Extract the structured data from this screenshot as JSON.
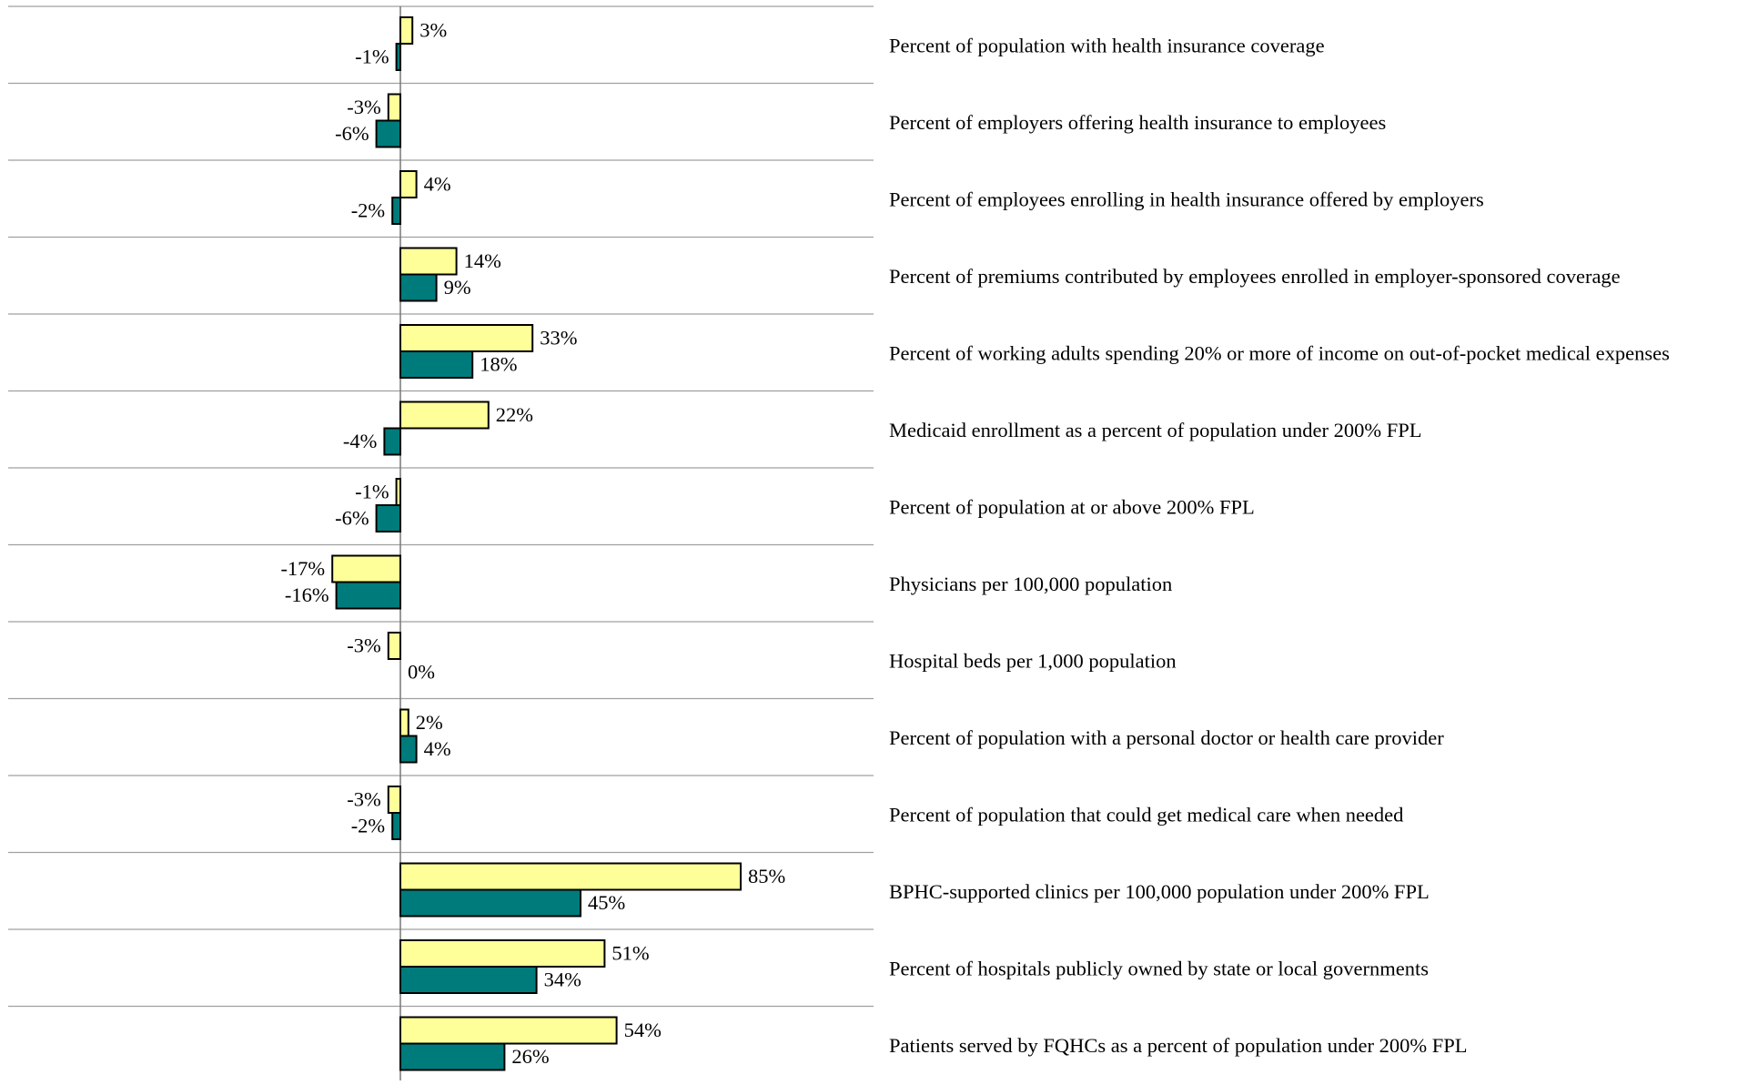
{
  "chart_data": {
    "type": "bar",
    "orientation": "horizontal",
    "xlim": [
      -30,
      100
    ],
    "grid": true,
    "legend": "none",
    "categories": [
      "Percent of population with health insurance coverage",
      "Percent of employers offering health insurance to employees",
      "Percent of employees enrolling in health insurance offered by employers",
      "Percent of premiums contributed by employees enrolled in employer-sponsored coverage",
      "Percent of working adults spending 20% or more of income on out-of-pocket medical expenses",
      "Medicaid enrollment as a percent of population under 200% FPL",
      "Percent of population at or above 200% FPL",
      "Physicians per 100,000 population",
      "Hospital beds per 1,000 population",
      "Percent of population with a personal doctor or health care provider",
      "Percent of population that could get medical care when needed",
      "BPHC-supported clinics per 100,000 population under 200% FPL",
      "Percent of hospitals publicly owned by state or local governments",
      "Patients served by FQHCs as a percent of population under 200% FPL"
    ],
    "series": [
      {
        "color": "#FFFF99",
        "values": [
          3,
          -3,
          4,
          14,
          33,
          22,
          -1,
          -17,
          -3,
          2,
          -3,
          85,
          51,
          54
        ],
        "labels": [
          "3%",
          "-3%",
          "4%",
          "14%",
          "33%",
          "22%",
          "-1%",
          "-17%",
          "-3%",
          "2%",
          "-3%",
          "85%",
          "51%",
          "54%"
        ]
      },
      {
        "color": "#007B7B",
        "values": [
          -1,
          -6,
          -2,
          9,
          18,
          -4,
          -6,
          -16,
          0,
          4,
          -2,
          45,
          34,
          26
        ],
        "labels": [
          "-1%",
          "-6%",
          "-2%",
          "9%",
          "18%",
          "-4%",
          "-6%",
          "-16%",
          "0%",
          "4%",
          "-2%",
          "45%",
          "34%",
          "26%"
        ]
      }
    ]
  }
}
